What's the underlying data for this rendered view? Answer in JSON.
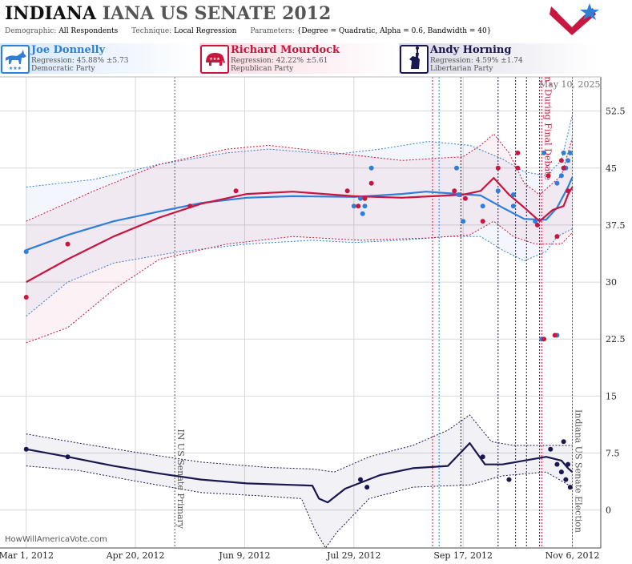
{
  "header": {
    "state": "INDIANA",
    "race": "IANA US SENATE 2012",
    "meta": [
      {
        "key": "Demographic:",
        "value": "All Respondents"
      },
      {
        "key": "Technique:",
        "value": "Local Regression"
      },
      {
        "key": "Parameters:",
        "value": "{Degree = Quadratic, Alpha = 0.6, Bandwidth = 40}"
      }
    ]
  },
  "candidates": [
    {
      "name": "Joe Donnelly",
      "regression": "Regression: 45.88% ±5.73",
      "party": "Democratic Party",
      "icon": "donkey-icon",
      "color": "#2f7fd8"
    },
    {
      "name": "Richard Mourdock",
      "regression": "Regression: 42.22% ±5.61",
      "party": "Republican Party",
      "icon": "elephant-icon",
      "color": "#c8163f"
    },
    {
      "name": "Andy Horning",
      "regression": "Regression: 4.59% ±1.74",
      "party": "Libertarian Party",
      "icon": "liberty-torch-icon",
      "color": "#1a1750"
    }
  ],
  "date_stamp": "May 10, 2025",
  "credit": "HowWillAmericaVote.com",
  "chart_data": {
    "type": "line",
    "x_type": "date",
    "xlim": [
      "2012-02-18",
      "2012-11-19"
    ],
    "ylim": [
      -5,
      57
    ],
    "y_ticks": [
      0,
      7.5,
      15,
      22.5,
      30,
      37.5,
      45,
      52.5
    ],
    "y_tick_labels": [
      "0",
      "7.5",
      "15",
      "22.5",
      "30",
      "37.5",
      "45",
      "52.5"
    ],
    "x_ticks": [
      "2012-03-01",
      "2012-04-20",
      "2012-06-09",
      "2012-07-29",
      "2012-09-17",
      "2012-11-06"
    ],
    "x_tick_labels": [
      "Mar 1, 2012",
      "Apr 20, 2012",
      "Jun 9, 2012",
      "Jul 29, 2012",
      "Sep 17, 2012",
      "Nov 6, 2012"
    ],
    "grid": true,
    "events": [
      {
        "date": "2012-05-08",
        "label": "IN US Senate Primary",
        "color": "#555555"
      },
      {
        "date": "2012-10-23",
        "label": "Mourdock Remark \"[Rape] is Something God Intended to Happen\" During Final Debate",
        "color": "#c8163f"
      },
      {
        "date": "2012-11-06",
        "label": "Indiana US Senate Election",
        "color": "#555555"
      }
    ],
    "campaign_markers": [
      {
        "date": "2012-09-03",
        "color": "#c8163f"
      },
      {
        "date": "2012-09-06",
        "color": "#2f7fd8"
      },
      {
        "date": "2012-09-16",
        "color": "#1a1750"
      },
      {
        "date": "2012-10-03",
        "color": "#1a1750"
      },
      {
        "date": "2012-10-11",
        "color": "#1a1750"
      },
      {
        "date": "2012-10-16",
        "color": "#1a1750"
      },
      {
        "date": "2012-10-22",
        "color": "#1a1750"
      }
    ],
    "series": [
      {
        "name": "Joe Donnelly",
        "color": "#2f7fd8",
        "trend": [
          [
            "2012-03-01",
            34.2
          ],
          [
            "2012-03-20",
            36.2
          ],
          [
            "2012-04-10",
            38.0
          ],
          [
            "2012-05-01",
            39.3
          ],
          [
            "2012-05-20",
            40.4
          ],
          [
            "2012-06-10",
            41.1
          ],
          [
            "2012-07-01",
            41.3
          ],
          [
            "2012-07-29",
            41.2
          ],
          [
            "2012-08-20",
            41.6
          ],
          [
            "2012-08-31",
            41.9
          ],
          [
            "2012-09-15",
            41.6
          ],
          [
            "2012-09-25",
            41.4
          ],
          [
            "2012-10-05",
            39.8
          ],
          [
            "2012-10-15",
            38.3
          ],
          [
            "2012-10-25",
            38.2
          ],
          [
            "2012-10-30",
            39.8
          ],
          [
            "2012-11-04",
            42.5
          ],
          [
            "2012-11-06",
            43.8
          ]
        ],
        "upper": [
          [
            "2012-03-01",
            42.5
          ],
          [
            "2012-04-01",
            43.5
          ],
          [
            "2012-05-01",
            45.5
          ],
          [
            "2012-06-01",
            47.0
          ],
          [
            "2012-06-20",
            47.5
          ],
          [
            "2012-07-20",
            46.8
          ],
          [
            "2012-08-10",
            47.5
          ],
          [
            "2012-09-01",
            48.5
          ],
          [
            "2012-09-20",
            48.0
          ],
          [
            "2012-10-05",
            46.2
          ],
          [
            "2012-10-15",
            44.5
          ],
          [
            "2012-10-25",
            44.0
          ],
          [
            "2012-11-01",
            46.0
          ],
          [
            "2012-11-06",
            52.0
          ]
        ],
        "lower": [
          [
            "2012-03-01",
            25.5
          ],
          [
            "2012-03-20",
            30.0
          ],
          [
            "2012-04-10",
            32.5
          ],
          [
            "2012-05-10",
            34.0
          ],
          [
            "2012-06-10",
            35.0
          ],
          [
            "2012-07-10",
            35.5
          ],
          [
            "2012-07-29",
            35.2
          ],
          [
            "2012-08-20",
            35.5
          ],
          [
            "2012-09-10",
            36.0
          ],
          [
            "2012-09-25",
            36.0
          ],
          [
            "2012-10-05",
            34.2
          ],
          [
            "2012-10-15",
            32.8
          ],
          [
            "2012-10-25",
            34.0
          ],
          [
            "2012-10-30",
            36.0
          ],
          [
            "2012-11-06",
            37.0
          ]
        ],
        "points": [
          [
            "2012-03-01",
            34
          ],
          [
            "2012-07-29",
            40
          ],
          [
            "2012-08-01",
            41
          ],
          [
            "2012-08-02",
            39
          ],
          [
            "2012-08-03",
            40
          ],
          [
            "2012-08-06",
            45
          ],
          [
            "2012-09-14",
            45
          ],
          [
            "2012-09-15",
            41.5
          ],
          [
            "2012-09-17",
            38
          ],
          [
            "2012-09-26",
            40
          ],
          [
            "2012-10-03",
            42
          ],
          [
            "2012-10-10",
            41.5
          ],
          [
            "2012-10-10",
            40
          ],
          [
            "2012-10-20",
            38
          ],
          [
            "2012-10-23",
            22.5
          ],
          [
            "2012-10-24",
            47
          ],
          [
            "2012-10-30",
            23
          ],
          [
            "2012-10-30",
            43
          ],
          [
            "2012-11-01",
            44
          ],
          [
            "2012-11-02",
            45
          ],
          [
            "2012-11-02",
            47
          ],
          [
            "2012-11-03",
            45
          ],
          [
            "2012-11-04",
            46
          ],
          [
            "2012-11-05",
            47
          ]
        ]
      },
      {
        "name": "Richard Mourdock",
        "color": "#c8163f",
        "trend": [
          [
            "2012-03-01",
            30.0
          ],
          [
            "2012-03-20",
            33.0
          ],
          [
            "2012-04-10",
            36.0
          ],
          [
            "2012-05-01",
            38.5
          ],
          [
            "2012-05-20",
            40.3
          ],
          [
            "2012-06-10",
            41.6
          ],
          [
            "2012-07-01",
            41.9
          ],
          [
            "2012-07-29",
            41.3
          ],
          [
            "2012-08-20",
            41.1
          ],
          [
            "2012-09-17",
            41.5
          ],
          [
            "2012-09-25",
            42.0
          ],
          [
            "2012-10-01",
            43.7
          ],
          [
            "2012-10-08",
            41.5
          ],
          [
            "2012-10-15",
            39.8
          ],
          [
            "2012-10-22",
            38.0
          ],
          [
            "2012-10-28",
            39.5
          ],
          [
            "2012-11-02",
            40.0
          ],
          [
            "2012-11-04",
            41.5
          ],
          [
            "2012-11-06",
            42.5
          ]
        ],
        "upper": [
          [
            "2012-03-01",
            38.0
          ],
          [
            "2012-04-01",
            42.0
          ],
          [
            "2012-05-01",
            45.5
          ],
          [
            "2012-06-01",
            47.5
          ],
          [
            "2012-06-20",
            48.0
          ],
          [
            "2012-07-20",
            47.0
          ],
          [
            "2012-08-20",
            46.0
          ],
          [
            "2012-09-17",
            46.5
          ],
          [
            "2012-09-25",
            48.0
          ],
          [
            "2012-10-01",
            49.5
          ],
          [
            "2012-10-08",
            47.0
          ],
          [
            "2012-10-15",
            43.0
          ],
          [
            "2012-10-22",
            41.5
          ],
          [
            "2012-11-01",
            44.0
          ],
          [
            "2012-11-06",
            49.0
          ]
        ],
        "lower": [
          [
            "2012-03-01",
            22.0
          ],
          [
            "2012-03-20",
            24.0
          ],
          [
            "2012-04-10",
            29.0
          ],
          [
            "2012-05-01",
            33.0
          ],
          [
            "2012-06-01",
            35.0
          ],
          [
            "2012-07-01",
            36.0
          ],
          [
            "2012-08-01",
            35.5
          ],
          [
            "2012-09-01",
            35.8
          ],
          [
            "2012-09-20",
            36.2
          ],
          [
            "2012-10-01",
            38.0
          ],
          [
            "2012-10-10",
            36.0
          ],
          [
            "2012-10-20",
            35.0
          ],
          [
            "2012-11-01",
            35.0
          ],
          [
            "2012-11-06",
            36.5
          ]
        ],
        "points": [
          [
            "2012-03-01",
            28
          ],
          [
            "2012-03-20",
            35
          ],
          [
            "2012-05-15",
            40
          ],
          [
            "2012-06-05",
            42
          ],
          [
            "2012-07-26",
            42
          ],
          [
            "2012-07-31",
            40
          ],
          [
            "2012-08-03",
            41
          ],
          [
            "2012-08-06",
            43
          ],
          [
            "2012-09-13",
            42
          ],
          [
            "2012-09-18",
            41
          ],
          [
            "2012-09-26",
            38
          ],
          [
            "2012-10-03",
            45
          ],
          [
            "2012-10-12",
            47
          ],
          [
            "2012-10-12",
            45
          ],
          [
            "2012-10-21",
            37.5
          ],
          [
            "2012-10-24",
            22.5
          ],
          [
            "2012-10-26",
            44
          ],
          [
            "2012-10-29",
            23
          ],
          [
            "2012-10-30",
            36
          ],
          [
            "2012-11-01",
            46
          ],
          [
            "2012-11-02",
            45
          ],
          [
            "2012-11-04",
            42
          ]
        ]
      },
      {
        "name": "Andy Horning",
        "color": "#1a1750",
        "trend": [
          [
            "2012-03-01",
            8.0
          ],
          [
            "2012-03-20",
            7.0
          ],
          [
            "2012-04-10",
            5.8
          ],
          [
            "2012-05-01",
            4.8
          ],
          [
            "2012-05-20",
            4.0
          ],
          [
            "2012-06-10",
            3.5
          ],
          [
            "2012-07-01",
            3.3
          ],
          [
            "2012-07-10",
            3.2
          ],
          [
            "2012-07-13",
            1.5
          ],
          [
            "2012-07-17",
            1.0
          ],
          [
            "2012-07-25",
            2.8
          ],
          [
            "2012-08-10",
            4.6
          ],
          [
            "2012-08-25",
            5.5
          ],
          [
            "2012-09-10",
            5.8
          ],
          [
            "2012-09-20",
            8.8
          ],
          [
            "2012-09-27",
            6.0
          ],
          [
            "2012-10-05",
            6.0
          ],
          [
            "2012-10-15",
            6.5
          ],
          [
            "2012-10-25",
            7.0
          ],
          [
            "2012-11-01",
            6.5
          ],
          [
            "2012-11-04",
            5.5
          ],
          [
            "2012-11-06",
            5.0
          ]
        ],
        "upper": [
          [
            "2012-03-01",
            10.0
          ],
          [
            "2012-03-25",
            8.8
          ],
          [
            "2012-04-20",
            7.6
          ],
          [
            "2012-05-20",
            6.3
          ],
          [
            "2012-06-20",
            5.6
          ],
          [
            "2012-07-10",
            5.4
          ],
          [
            "2012-07-20",
            5.0
          ],
          [
            "2012-08-05",
            7.0
          ],
          [
            "2012-08-25",
            8.5
          ],
          [
            "2012-09-10",
            10.5
          ],
          [
            "2012-09-20",
            12.5
          ],
          [
            "2012-09-30",
            9.0
          ],
          [
            "2012-10-10",
            8.5
          ],
          [
            "2012-10-25",
            8.5
          ],
          [
            "2012-11-06",
            8.5
          ]
        ],
        "lower": [
          [
            "2012-03-01",
            5.8
          ],
          [
            "2012-03-25",
            5.2
          ],
          [
            "2012-04-20",
            3.8
          ],
          [
            "2012-05-20",
            2.3
          ],
          [
            "2012-06-20",
            1.8
          ],
          [
            "2012-07-05",
            1.5
          ],
          [
            "2012-07-11",
            -2.5
          ],
          [
            "2012-07-16",
            -5.0
          ],
          [
            "2012-07-21",
            -3.0
          ],
          [
            "2012-08-05",
            1.5
          ],
          [
            "2012-08-25",
            3.0
          ],
          [
            "2012-09-20",
            3.3
          ],
          [
            "2012-10-05",
            4.5
          ],
          [
            "2012-10-25",
            5.0
          ],
          [
            "2012-11-06",
            3.0
          ]
        ],
        "points": [
          [
            "2012-03-01",
            8
          ],
          [
            "2012-03-20",
            7
          ],
          [
            "2012-08-01",
            4
          ],
          [
            "2012-08-04",
            3
          ],
          [
            "2012-09-26",
            7
          ],
          [
            "2012-10-08",
            4
          ],
          [
            "2012-10-27",
            8
          ],
          [
            "2012-10-30",
            6
          ],
          [
            "2012-11-01",
            5
          ],
          [
            "2012-11-02",
            9
          ],
          [
            "2012-11-03",
            4
          ],
          [
            "2012-11-04",
            6
          ],
          [
            "2012-11-05",
            3
          ]
        ]
      }
    ]
  }
}
